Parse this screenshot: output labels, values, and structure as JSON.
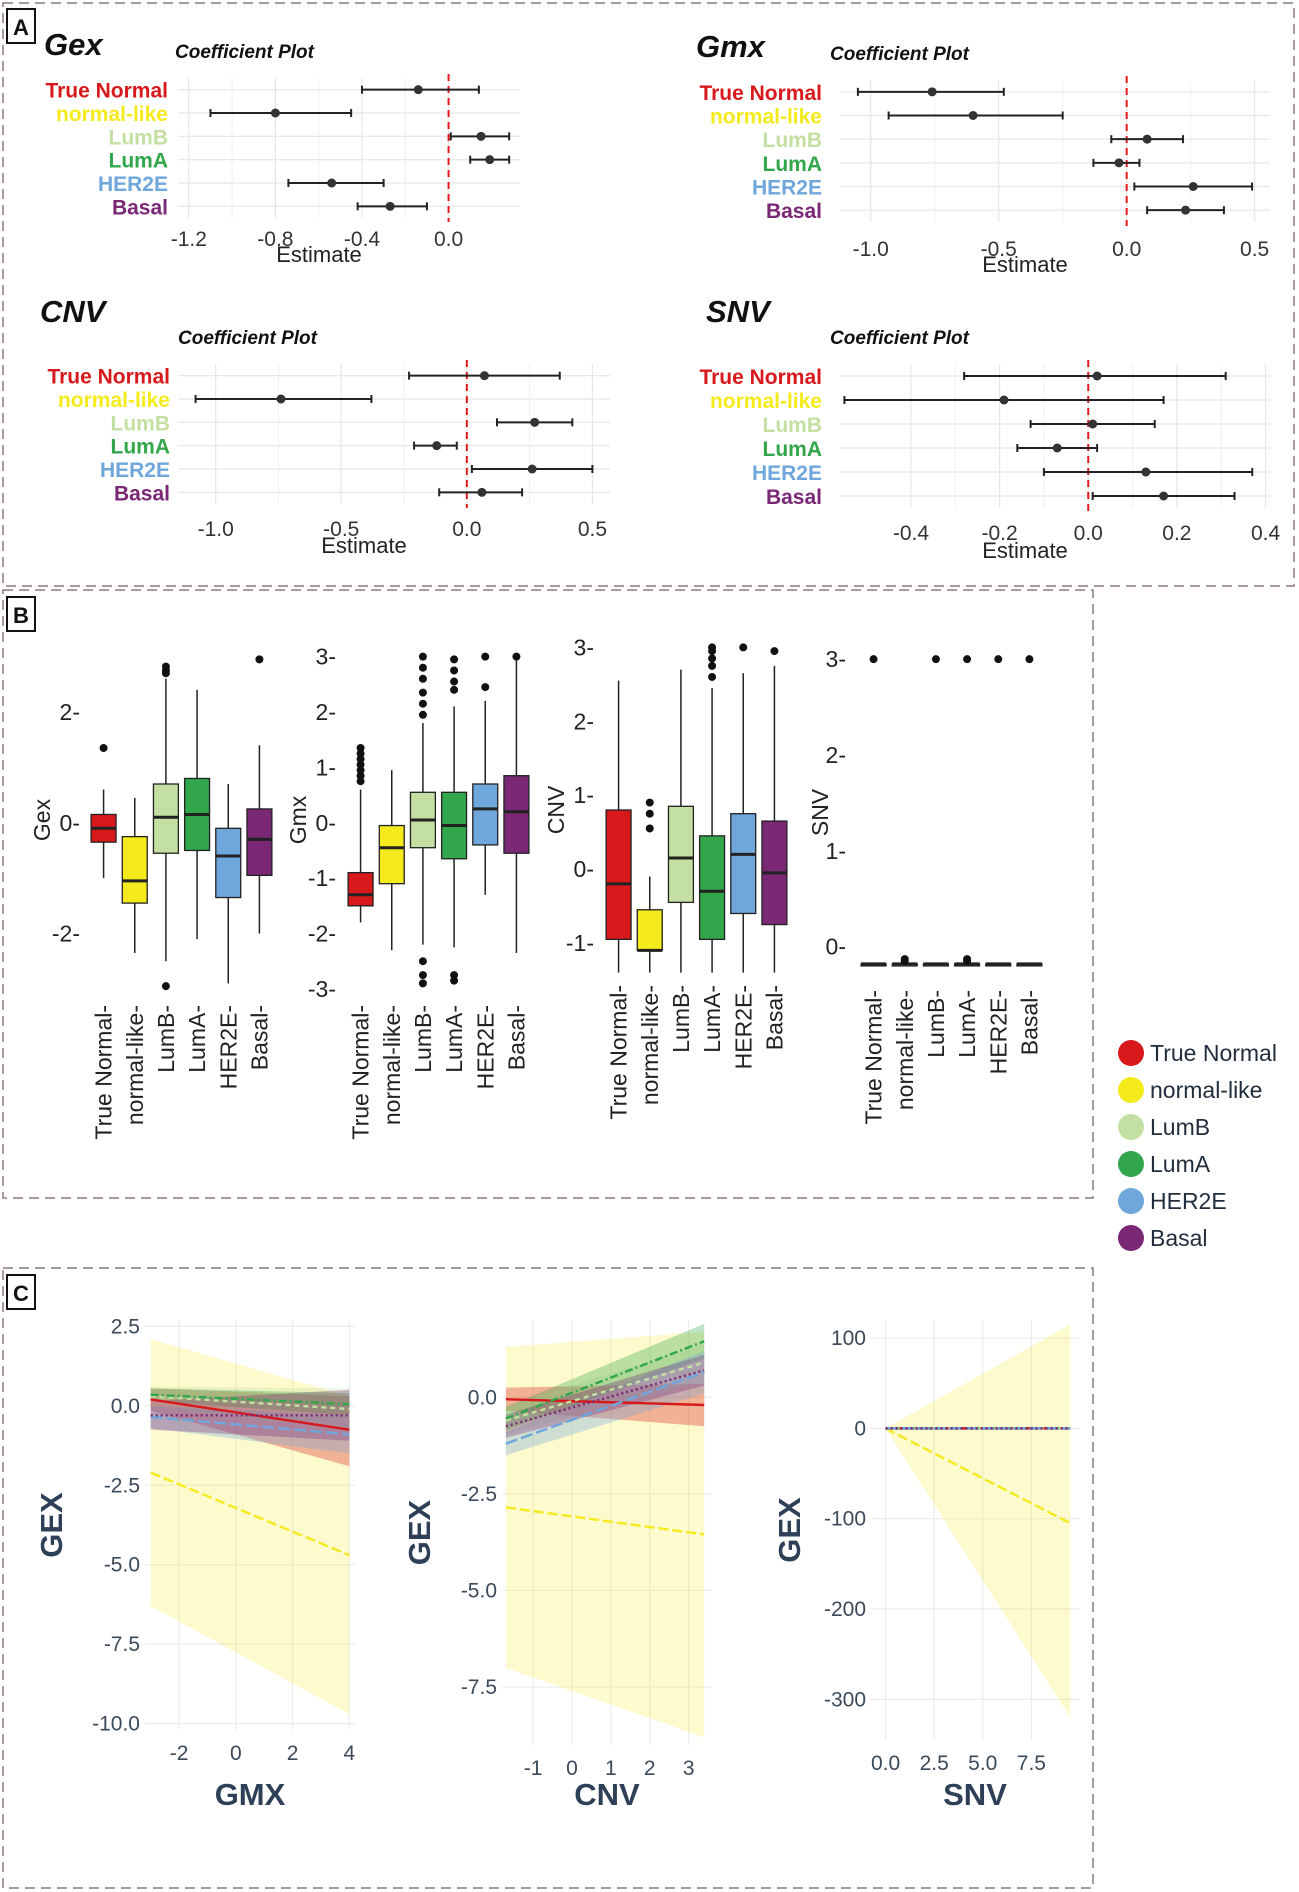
{
  "colors": {
    "True Normal": "#d7191c",
    "normal-like": "#f4ea1c",
    "LumB": "#c3e0a2",
    "LumA": "#31a64a",
    "HER2E": "#6fa6dc",
    "Basal": "#7a2775"
  },
  "panel_labels": [
    "A",
    "B",
    "C"
  ],
  "legend": {
    "entries": [
      "True Normal",
      "normal-like",
      "LumB",
      "LumA",
      "HER2E",
      "Basal"
    ]
  },
  "chart_data": [
    {
      "id": "gex-coef",
      "type": "scatter",
      "subtype": "coefficient-plot",
      "panel_title": "Gex",
      "title": "Coefficient Plot",
      "xlabel": "Estimate",
      "ylabel": "",
      "categories": [
        "True Normal",
        "normal-like",
        "LumB",
        "LumA",
        "HER2E",
        "Basal"
      ],
      "estimate": [
        -0.14,
        -0.8,
        0.15,
        0.19,
        -0.54,
        -0.27
      ],
      "ci_low": [
        -0.4,
        -1.1,
        0.01,
        0.1,
        -0.74,
        -0.42
      ],
      "ci_high": [
        0.14,
        -0.45,
        0.28,
        0.28,
        -0.3,
        -0.1
      ],
      "xlim": [
        -1.25,
        0.33
      ],
      "xticks": [
        -1.2,
        -0.8,
        -0.4,
        0.0
      ],
      "xtick_labels": [
        "-1.2",
        "-0.8",
        "-0.4",
        "0.0"
      ],
      "ref_line": 0
    },
    {
      "id": "gmx-coef",
      "type": "scatter",
      "subtype": "coefficient-plot",
      "panel_title": "Gmx",
      "title": "Coefficient Plot",
      "xlabel": "Estimate",
      "ylabel": "",
      "categories": [
        "True Normal",
        "normal-like",
        "LumB",
        "LumA",
        "HER2E",
        "Basal"
      ],
      "estimate": [
        -0.76,
        -0.6,
        0.08,
        -0.03,
        0.26,
        0.23
      ],
      "ci_low": [
        -1.05,
        -0.93,
        -0.06,
        -0.13,
        0.03,
        0.08
      ],
      "ci_high": [
        -0.48,
        -0.25,
        0.22,
        0.05,
        0.49,
        0.38
      ],
      "xlim": [
        -1.12,
        0.56
      ],
      "xticks": [
        -1.0,
        -0.5,
        0.0,
        0.5
      ],
      "xtick_labels": [
        "-1.0",
        "-0.5",
        "0.0",
        "0.5"
      ],
      "ref_line": 0
    },
    {
      "id": "cnv-coef",
      "type": "scatter",
      "subtype": "coefficient-plot",
      "panel_title": "CNV",
      "title": "Coefficient Plot",
      "xlabel": "Estimate",
      "ylabel": "",
      "categories": [
        "True Normal",
        "normal-like",
        "LumB",
        "LumA",
        "HER2E",
        "Basal"
      ],
      "estimate": [
        0.07,
        -0.74,
        0.27,
        -0.12,
        0.26,
        0.06
      ],
      "ci_low": [
        -0.23,
        -1.08,
        0.12,
        -0.21,
        0.02,
        -0.11
      ],
      "ci_high": [
        0.37,
        -0.38,
        0.42,
        -0.04,
        0.5,
        0.22
      ],
      "xlim": [
        -1.15,
        0.57
      ],
      "xticks": [
        -1.0,
        -0.5,
        0.0,
        0.5
      ],
      "xtick_labels": [
        "-1.0",
        "-0.5",
        "0.0",
        "0.5"
      ],
      "ref_line": 0
    },
    {
      "id": "snv-coef",
      "type": "scatter",
      "subtype": "coefficient-plot",
      "panel_title": "SNV",
      "title": "Coefficient Plot",
      "xlabel": "Estimate",
      "ylabel": "",
      "categories": [
        "True Normal",
        "normal-like",
        "LumB",
        "LumA",
        "HER2E",
        "Basal"
      ],
      "estimate": [
        0.02,
        -0.19,
        0.01,
        -0.07,
        0.13,
        0.17
      ],
      "ci_low": [
        -0.28,
        -0.55,
        -0.13,
        -0.16,
        -0.1,
        0.01
      ],
      "ci_high": [
        0.31,
        0.17,
        0.15,
        0.02,
        0.37,
        0.33
      ],
      "xlim": [
        -0.56,
        0.41
      ],
      "xticks": [
        -0.4,
        -0.2,
        0.0,
        0.2,
        0.4
      ],
      "xtick_labels": [
        "-0.4",
        "-0.2",
        "0.0",
        "0.2",
        "0.4"
      ],
      "ref_line": 0
    },
    {
      "id": "gex-box",
      "type": "box",
      "title": "",
      "xlabel": "",
      "ylabel": "Gex",
      "categories": [
        "True Normal",
        "normal-like",
        "LumB",
        "LumA",
        "HER2E",
        "Basal"
      ],
      "boxes": [
        {
          "q1": -0.35,
          "median": -0.1,
          "q3": 0.15,
          "wmin": -1.0,
          "wmax": 0.6,
          "outliers": [
            1.35
          ]
        },
        {
          "q1": -1.45,
          "median": -1.05,
          "q3": -0.25,
          "wmin": -2.35,
          "wmax": 0.45,
          "outliers": []
        },
        {
          "q1": -0.55,
          "median": 0.1,
          "q3": 0.7,
          "wmin": -2.5,
          "wmax": 2.6,
          "outliers": [
            2.7,
            2.75,
            2.82,
            -2.95
          ]
        },
        {
          "q1": -0.5,
          "median": 0.15,
          "q3": 0.8,
          "wmin": -2.1,
          "wmax": 2.4,
          "outliers": []
        },
        {
          "q1": -1.35,
          "median": -0.6,
          "q3": -0.1,
          "wmin": -2.9,
          "wmax": 0.7,
          "outliers": []
        },
        {
          "q1": -0.95,
          "median": -0.3,
          "q3": 0.25,
          "wmin": -2.0,
          "wmax": 1.4,
          "outliers": [
            2.95
          ]
        }
      ],
      "ylim": [
        -3.2,
        3.3
      ],
      "yticks": [
        -2,
        0,
        2
      ],
      "ytick_labels": [
        "-2",
        "0",
        "2"
      ]
    },
    {
      "id": "gmx-box",
      "type": "box",
      "title": "",
      "xlabel": "",
      "ylabel": "Gmx",
      "categories": [
        "True Normal",
        "normal-like",
        "LumB",
        "LumA",
        "HER2E",
        "Basal"
      ],
      "boxes": [
        {
          "q1": -1.5,
          "median": -1.3,
          "q3": -0.9,
          "wmin": -1.8,
          "wmax": 0.6,
          "outliers": [
            0.75,
            0.85,
            0.95,
            1.05,
            1.15,
            1.25,
            1.35
          ]
        },
        {
          "q1": -1.1,
          "median": -0.45,
          "q3": -0.05,
          "wmin": -2.3,
          "wmax": 0.95,
          "outliers": []
        },
        {
          "q1": -0.45,
          "median": 0.05,
          "q3": 0.55,
          "wmin": -2.2,
          "wmax": 1.8,
          "outliers": [
            1.95,
            2.15,
            2.35,
            2.6,
            2.8,
            3.0,
            -2.5,
            -2.75,
            -2.9
          ]
        },
        {
          "q1": -0.65,
          "median": -0.05,
          "q3": 0.55,
          "wmin": -2.25,
          "wmax": 2.1,
          "outliers": [
            2.4,
            2.55,
            2.75,
            2.95,
            -2.75,
            -2.85
          ]
        },
        {
          "q1": -0.4,
          "median": 0.25,
          "q3": 0.7,
          "wmin": -1.3,
          "wmax": 2.2,
          "outliers": [
            2.45,
            3.0
          ]
        },
        {
          "q1": -0.55,
          "median": 0.2,
          "q3": 0.85,
          "wmin": -2.35,
          "wmax": 3.0,
          "outliers": [
            3.0
          ]
        }
      ],
      "ylim": [
        -3.2,
        3.3
      ],
      "yticks": [
        -3,
        -2,
        -1,
        0,
        1,
        2,
        3
      ],
      "ytick_labels": [
        "-3",
        "-2",
        "-1",
        "0",
        "1",
        "2",
        "3"
      ]
    },
    {
      "id": "cnv-box",
      "type": "box",
      "title": "",
      "xlabel": "",
      "ylabel": "CNV",
      "categories": [
        "True Normal",
        "normal-like",
        "LumB",
        "LumA",
        "HER2E",
        "Basal"
      ],
      "boxes": [
        {
          "q1": -0.95,
          "median": -0.2,
          "q3": 0.8,
          "wmin": -1.4,
          "wmax": 2.55,
          "outliers": []
        },
        {
          "q1": -1.1,
          "median": -1.1,
          "q3": -0.55,
          "wmin": -1.4,
          "wmax": -0.1,
          "outliers": [
            0.55,
            0.75,
            0.9
          ]
        },
        {
          "q1": -0.45,
          "median": 0.15,
          "q3": 0.85,
          "wmin": -1.4,
          "wmax": 2.7,
          "outliers": []
        },
        {
          "q1": -0.95,
          "median": -0.3,
          "q3": 0.45,
          "wmin": -1.4,
          "wmax": 2.45,
          "outliers": [
            2.6,
            2.75,
            2.85,
            2.95,
            3.0
          ]
        },
        {
          "q1": -0.6,
          "median": 0.2,
          "q3": 0.75,
          "wmin": -1.4,
          "wmax": 2.65,
          "outliers": [
            3.0
          ]
        },
        {
          "q1": -0.75,
          "median": -0.05,
          "q3": 0.65,
          "wmin": -1.4,
          "wmax": 2.75,
          "outliers": [
            2.95
          ]
        }
      ],
      "ylim": [
        -1.5,
        3.1
      ],
      "yticks": [
        -1,
        0,
        1,
        2,
        3
      ],
      "ytick_labels": [
        "-1",
        "0",
        "1",
        "2",
        "3"
      ]
    },
    {
      "id": "snv-box",
      "type": "box",
      "title": "",
      "xlabel": "",
      "ylabel": "SNV",
      "categories": [
        "True Normal",
        "normal-like",
        "LumB",
        "LumA",
        "HER2E",
        "Basal"
      ],
      "boxes": [
        {
          "q1": -0.18,
          "median": -0.18,
          "q3": -0.18,
          "wmin": -0.18,
          "wmax": -0.18,
          "outliers": [
            3.0
          ]
        },
        {
          "q1": -0.18,
          "median": -0.18,
          "q3": -0.18,
          "wmin": -0.18,
          "wmax": -0.18,
          "outliers": [
            -0.13,
            -0.15
          ]
        },
        {
          "q1": -0.18,
          "median": -0.18,
          "q3": -0.18,
          "wmin": -0.18,
          "wmax": -0.18,
          "outliers": [
            3.0
          ]
        },
        {
          "q1": -0.18,
          "median": -0.18,
          "q3": -0.18,
          "wmin": -0.18,
          "wmax": -0.18,
          "outliers": [
            3.0,
            -0.13,
            -0.15
          ]
        },
        {
          "q1": -0.18,
          "median": -0.18,
          "q3": -0.18,
          "wmin": -0.18,
          "wmax": -0.18,
          "outliers": [
            3.0
          ]
        },
        {
          "q1": -0.18,
          "median": -0.18,
          "q3": -0.18,
          "wmin": -0.18,
          "wmax": -0.18,
          "outliers": [
            3.0
          ]
        }
      ],
      "ylim": [
        -0.4,
        3.2
      ],
      "yticks": [
        0,
        1,
        2,
        3
      ],
      "ytick_labels": [
        "0",
        "1",
        "2",
        "3"
      ]
    },
    {
      "id": "gex-vs-gmx",
      "type": "line",
      "title": "",
      "xlabel": "GMX",
      "ylabel": "GEX",
      "x": [
        -3,
        4
      ],
      "series": [
        {
          "name": "True Normal",
          "values": [
            0.2,
            -0.75
          ],
          "ci_low": [
            -0.15,
            -1.9
          ],
          "ci_high": [
            0.55,
            0.3
          ],
          "dash": ""
        },
        {
          "name": "normal-like",
          "values": [
            -2.1,
            -4.7
          ],
          "ci_low": [
            -6.3,
            -9.7
          ],
          "ci_high": [
            2.1,
            0.3
          ],
          "dash": "10,4"
        },
        {
          "name": "LumB",
          "values": [
            0.3,
            -0.1
          ],
          "ci_low": [
            -0.05,
            -0.75
          ],
          "ci_high": [
            0.6,
            0.55
          ],
          "dash": "5,4"
        },
        {
          "name": "LumA",
          "values": [
            0.35,
            0.05
          ],
          "ci_low": [
            0.15,
            -0.3
          ],
          "ci_high": [
            0.55,
            0.4
          ],
          "dash": "8,3,2,3"
        },
        {
          "name": "HER2E",
          "values": [
            -0.35,
            -0.9
          ],
          "ci_low": [
            -0.7,
            -1.5
          ],
          "ci_high": [
            0.0,
            -0.3
          ],
          "dash": "12,4"
        },
        {
          "name": "Basal",
          "values": [
            -0.3,
            -0.3
          ],
          "ci_low": [
            -0.75,
            -1.1
          ],
          "ci_high": [
            0.15,
            0.5
          ],
          "dash": "2,3"
        }
      ],
      "xlim": [
        -3.2,
        4.2
      ],
      "ylim": [
        -10.2,
        2.7
      ],
      "xticks": [
        -2,
        0,
        2,
        4
      ],
      "xtick_labels": [
        "-2",
        "0",
        "2",
        "4"
      ],
      "yticks": [
        2.5,
        0.0,
        -2.5,
        -5.0,
        -7.5,
        -10.0
      ],
      "ytick_labels": [
        "2.5",
        "0.0",
        "-2.5",
        "-5.0",
        "-7.5",
        "-10.0"
      ]
    },
    {
      "id": "gex-vs-cnv",
      "type": "line",
      "title": "",
      "xlabel": "CNV",
      "ylabel": "GEX",
      "x": [
        -1.7,
        3.4
      ],
      "series": [
        {
          "name": "True Normal",
          "values": [
            -0.05,
            -0.2
          ],
          "ci_low": [
            -0.35,
            -0.75
          ],
          "ci_high": [
            0.25,
            0.35
          ],
          "dash": ""
        },
        {
          "name": "normal-like",
          "values": [
            -2.85,
            -3.55
          ],
          "ci_low": [
            -7.0,
            -8.8
          ],
          "ci_high": [
            1.3,
            1.7
          ],
          "dash": "10,4"
        },
        {
          "name": "LumB",
          "values": [
            -0.6,
            0.9
          ],
          "ci_low": [
            -0.95,
            0.4
          ],
          "ci_high": [
            -0.25,
            1.4
          ],
          "dash": "5,4"
        },
        {
          "name": "LumA",
          "values": [
            -0.55,
            1.45
          ],
          "ci_low": [
            -0.85,
            1.0
          ],
          "ci_high": [
            -0.25,
            1.9
          ],
          "dash": "8,3,2,3"
        },
        {
          "name": "HER2E",
          "values": [
            -1.2,
            0.65
          ],
          "ci_low": [
            -1.5,
            0.1
          ],
          "ci_high": [
            -0.9,
            1.2
          ],
          "dash": "12,4"
        },
        {
          "name": "Basal",
          "values": [
            -0.75,
            0.7
          ],
          "ci_low": [
            -1.05,
            0.3
          ],
          "ci_high": [
            -0.45,
            1.1
          ],
          "dash": "2,3"
        }
      ],
      "xlim": [
        -1.8,
        3.6
      ],
      "ylim": [
        -9.0,
        2.0
      ],
      "xticks": [
        -1,
        0,
        1,
        2,
        3
      ],
      "xtick_labels": [
        "-1",
        "0",
        "1",
        "2",
        "3"
      ],
      "yticks": [
        0.0,
        -2.5,
        -5.0,
        -7.5
      ],
      "ytick_labels": [
        "0.0",
        "-2.5",
        "-5.0",
        "-7.5"
      ]
    },
    {
      "id": "gex-vs-snv",
      "type": "line",
      "title": "",
      "xlabel": "SNV",
      "ylabel": "GEX",
      "x": [
        0,
        9.5
      ],
      "series": [
        {
          "name": "True Normal",
          "values": [
            0,
            0
          ],
          "ci_low": [
            0,
            0
          ],
          "ci_high": [
            0,
            0
          ],
          "dash": ""
        },
        {
          "name": "normal-like",
          "values": [
            0,
            -105
          ],
          "ci_low": [
            0,
            -320
          ],
          "ci_high": [
            0,
            115
          ],
          "dash": "10,4"
        },
        {
          "name": "LumB",
          "values": [
            0,
            0
          ],
          "ci_low": [
            0,
            0
          ],
          "ci_high": [
            0,
            0
          ],
          "dash": "5,4"
        },
        {
          "name": "LumA",
          "values": [
            0,
            0
          ],
          "ci_low": [
            0,
            0
          ],
          "ci_high": [
            0,
            0
          ],
          "dash": "8,3,2,3"
        },
        {
          "name": "HER2E",
          "values": [
            0,
            0
          ],
          "ci_low": [
            0,
            0
          ],
          "ci_high": [
            0,
            0
          ],
          "dash": "12,4"
        },
        {
          "name": "Basal",
          "values": [
            0,
            0
          ],
          "ci_low": [
            0,
            0
          ],
          "ci_high": [
            0,
            0
          ],
          "dash": "2,3"
        }
      ],
      "xlim": [
        -0.8,
        10.0
      ],
      "ylim": [
        -345,
        120
      ],
      "xticks": [
        0.0,
        2.5,
        5.0,
        7.5
      ],
      "xtick_labels": [
        "0.0",
        "2.5",
        "5.0",
        "7.5"
      ],
      "yticks": [
        100,
        0,
        -100,
        -200,
        -300
      ],
      "ytick_labels": [
        "100",
        "0",
        "-100",
        "-200",
        "-300"
      ]
    }
  ]
}
